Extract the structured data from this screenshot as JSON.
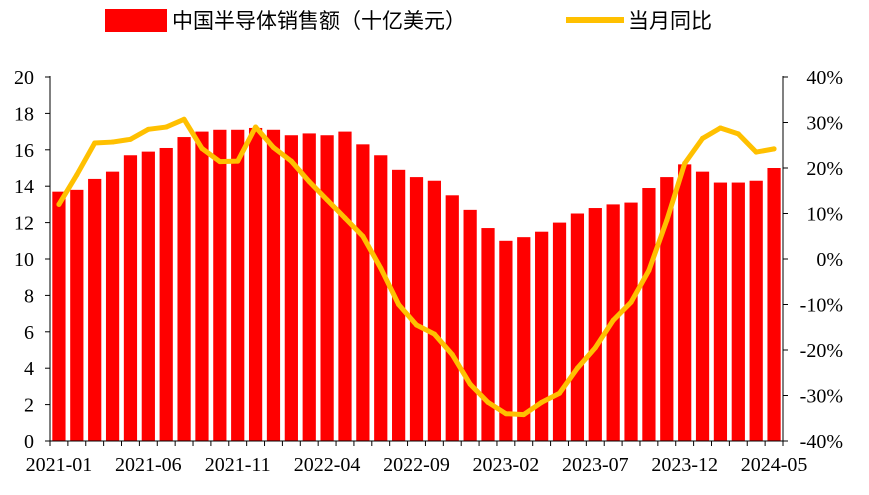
{
  "chart_data": {
    "type": "bar",
    "title": "",
    "legend": [
      {
        "label": "中国半导体销售额（十亿美元）",
        "kind": "bar",
        "color": "#ff0000"
      },
      {
        "label": "当月同比",
        "kind": "line",
        "color": "#ffc000"
      }
    ],
    "legend_position": "top",
    "grid": false,
    "left_axis": {
      "ylim": [
        0,
        20
      ],
      "ticks": [
        "0",
        "2",
        "4",
        "6",
        "8",
        "10",
        "12",
        "14",
        "16",
        "18",
        "20"
      ]
    },
    "right_axis": {
      "ylim": [
        -40,
        40
      ],
      "ticks": [
        "-40%",
        "-30%",
        "-20%",
        "-10%",
        "0%",
        "10%",
        "20%",
        "30%",
        "40%"
      ]
    },
    "x_tick_labels": [
      "2021-01",
      "2021-06",
      "2021-11",
      "2022-04",
      "2022-09",
      "2023-02",
      "2023-07",
      "2023-12",
      "2024-05"
    ],
    "categories": [
      "2021-01",
      "2021-02",
      "2021-03",
      "2021-04",
      "2021-05",
      "2021-06",
      "2021-07",
      "2021-08",
      "2021-09",
      "2021-10",
      "2021-11",
      "2021-12",
      "2022-01",
      "2022-02",
      "2022-03",
      "2022-04",
      "2022-05",
      "2022-06",
      "2022-07",
      "2022-08",
      "2022-09",
      "2022-10",
      "2022-11",
      "2022-12",
      "2023-01",
      "2023-02",
      "2023-03",
      "2023-04",
      "2023-05",
      "2023-06",
      "2023-07",
      "2023-08",
      "2023-09",
      "2023-10",
      "2023-11",
      "2023-12",
      "2024-01",
      "2024-02",
      "2024-03",
      "2024-04",
      "2024-05"
    ],
    "series": [
      {
        "name": "中国半导体销售额（十亿美元）",
        "type": "bar",
        "axis": "left",
        "color": "#ff0000",
        "values": [
          13.7,
          13.8,
          14.4,
          14.8,
          15.7,
          15.9,
          16.1,
          16.7,
          17.0,
          17.1,
          17.1,
          17.2,
          17.1,
          16.8,
          16.9,
          16.8,
          17.0,
          16.3,
          15.7,
          14.9,
          14.5,
          14.3,
          13.5,
          12.7,
          11.7,
          11.0,
          11.2,
          11.5,
          12.0,
          12.5,
          12.8,
          13.0,
          13.1,
          13.9,
          14.5,
          15.2,
          14.8,
          14.2,
          14.2,
          14.3,
          15.0
        ]
      },
      {
        "name": "当月同比",
        "type": "line",
        "axis": "right",
        "color": "#ffc000",
        "values": [
          12.0,
          18.5,
          25.5,
          25.7,
          26.3,
          28.5,
          29.0,
          30.7,
          24.3,
          21.4,
          21.5,
          29.0,
          24.5,
          21.5,
          17.0,
          13.0,
          9.0,
          5.0,
          -2.0,
          -10.0,
          -14.5,
          -16.5,
          -21.0,
          -27.5,
          -31.5,
          -34.0,
          -34.2,
          -31.5,
          -29.5,
          -24.0,
          -19.5,
          -13.5,
          -9.5,
          -2.5,
          8.5,
          21.0,
          26.5,
          28.8,
          27.5,
          23.5,
          24.2
        ]
      }
    ]
  }
}
